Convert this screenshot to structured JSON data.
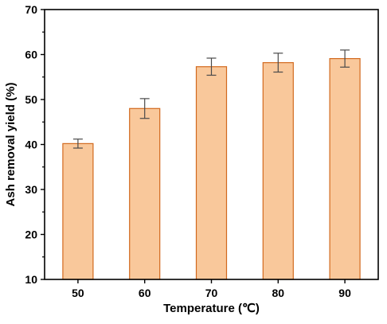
{
  "chart_data": {
    "type": "bar",
    "categories": [
      "50",
      "60",
      "70",
      "80",
      "90"
    ],
    "values": [
      40.2,
      48.0,
      57.3,
      58.2,
      59.1
    ],
    "errors": [
      1.0,
      2.2,
      1.9,
      2.1,
      1.9
    ],
    "xlabel": "Temperature (℃)",
    "ylabel": "Ash removal yield (%)",
    "ylim": [
      10,
      70
    ],
    "yticks": [
      10,
      20,
      30,
      40,
      50,
      60,
      70
    ],
    "grid": false,
    "colors": {
      "bar_fill": "#f9c89b",
      "bar_stroke": "#d2691e",
      "error_bar": "#4a4a4a",
      "axis": "#000000"
    }
  }
}
